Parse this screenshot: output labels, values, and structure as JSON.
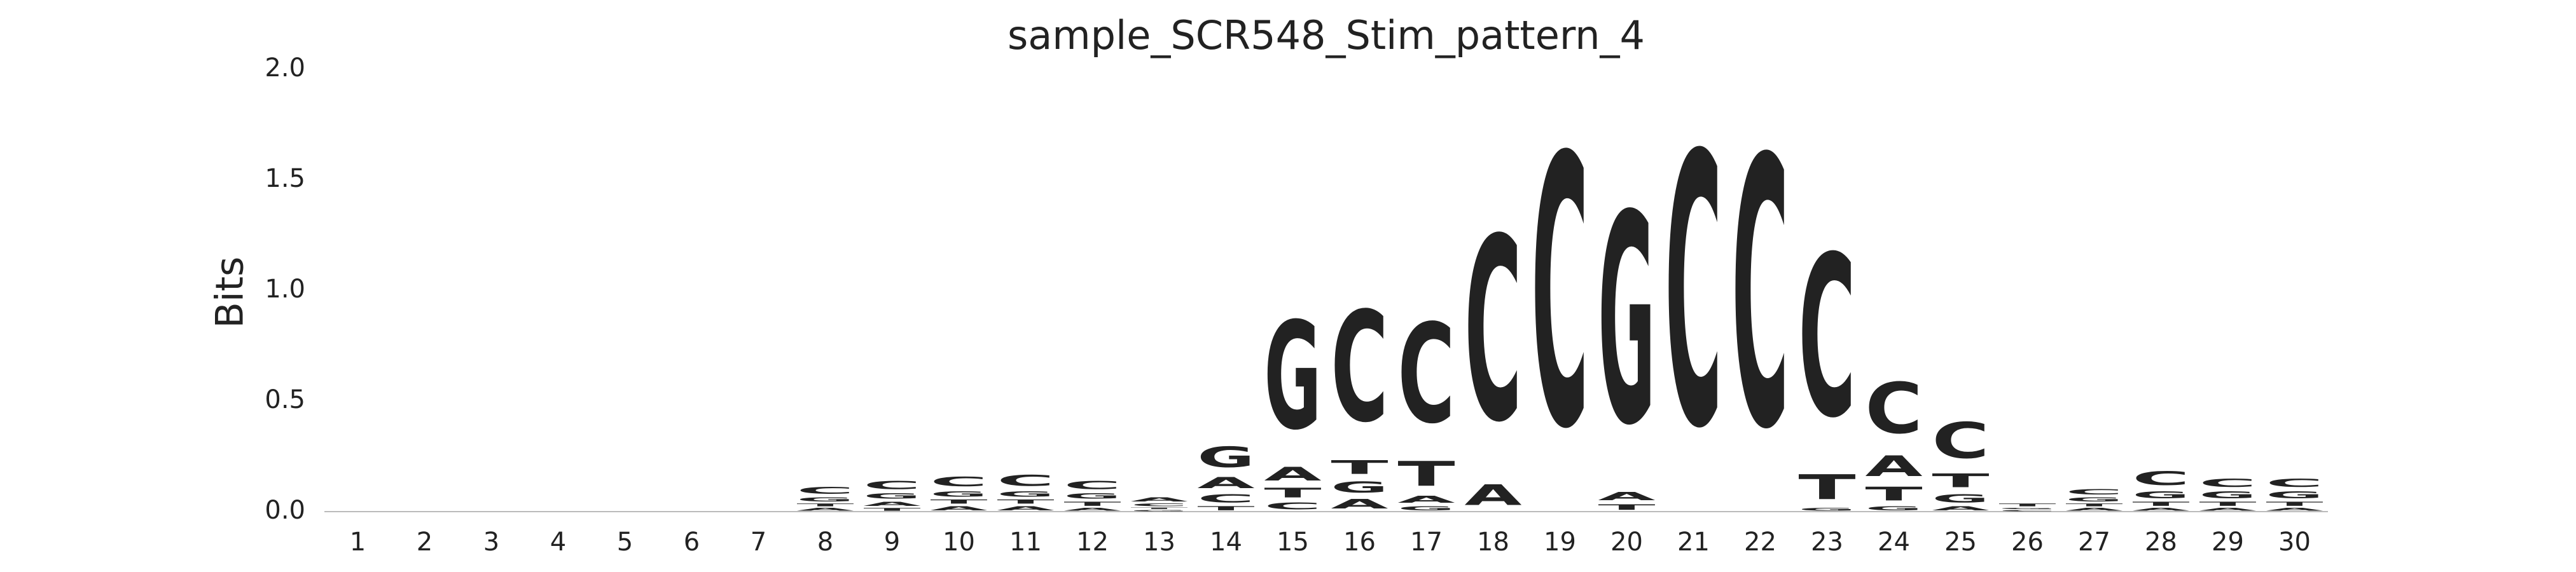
{
  "chart_data": {
    "type": "logo",
    "title": "sample_SCR548_Stim_pattern_4",
    "y_label": "Bits",
    "categories": [
      "1",
      "2",
      "3",
      "4",
      "5",
      "6",
      "7",
      "8",
      "9",
      "10",
      "11",
      "12",
      "13",
      "14",
      "15",
      "16",
      "17",
      "18",
      "19",
      "20",
      "21",
      "22",
      "23",
      "24",
      "25",
      "26",
      "27",
      "28",
      "29",
      "30"
    ],
    "series": [
      {
        "name": "A",
        "color": "#008000",
        "values": [
          0,
          0,
          0,
          0,
          0,
          0,
          0,
          0.02,
          0.03,
          0.03,
          0.03,
          0.02,
          0.03,
          0.08,
          0.1,
          0.07,
          0.05,
          0.15,
          0,
          0.06,
          0,
          0,
          0,
          0.15,
          0.03,
          0,
          0.02,
          0.02,
          0.02,
          0.02
        ]
      },
      {
        "name": "C",
        "color": "#0000ff",
        "values": [
          0,
          0,
          0,
          0,
          0,
          0,
          0,
          0.05,
          0.06,
          0.07,
          0.08,
          0.06,
          0.02,
          0.06,
          0.05,
          0.8,
          0.72,
          1.33,
          1.96,
          0,
          1.97,
          1.95,
          1.17,
          0.37,
          0.26,
          0.01,
          0.04,
          0.1,
          0.06,
          0.06
        ]
      },
      {
        "name": "G",
        "color": "#ffa500",
        "values": [
          0,
          0,
          0,
          0,
          0,
          0,
          0,
          0.03,
          0.04,
          0.04,
          0.04,
          0.04,
          0.01,
          0.15,
          0.78,
          0.08,
          0.03,
          0,
          0,
          1.52,
          0,
          0,
          0.02,
          0.03,
          0.06,
          0.01,
          0.03,
          0.05,
          0.05,
          0.05
        ]
      },
      {
        "name": "T",
        "color": "#ff0000",
        "values": [
          0,
          0,
          0,
          0,
          0,
          0,
          0,
          0.02,
          0.02,
          0.03,
          0.03,
          0.03,
          0.01,
          0.03,
          0.07,
          0.1,
          0.18,
          0,
          0,
          0.04,
          0,
          0,
          0.18,
          0.1,
          0.1,
          0.02,
          0.02,
          0.03,
          0.03,
          0.03
        ]
      }
    ],
    "ylim": [
      0,
      2.0
    ],
    "yticks": [
      {
        "value": 0,
        "label": "0.0"
      },
      {
        "value": 0.5,
        "label": "0.5"
      },
      {
        "value": 1,
        "label": "1.0"
      },
      {
        "value": 1.5,
        "label": "1.5"
      },
      {
        "value": 2,
        "label": "2.0"
      }
    ]
  }
}
